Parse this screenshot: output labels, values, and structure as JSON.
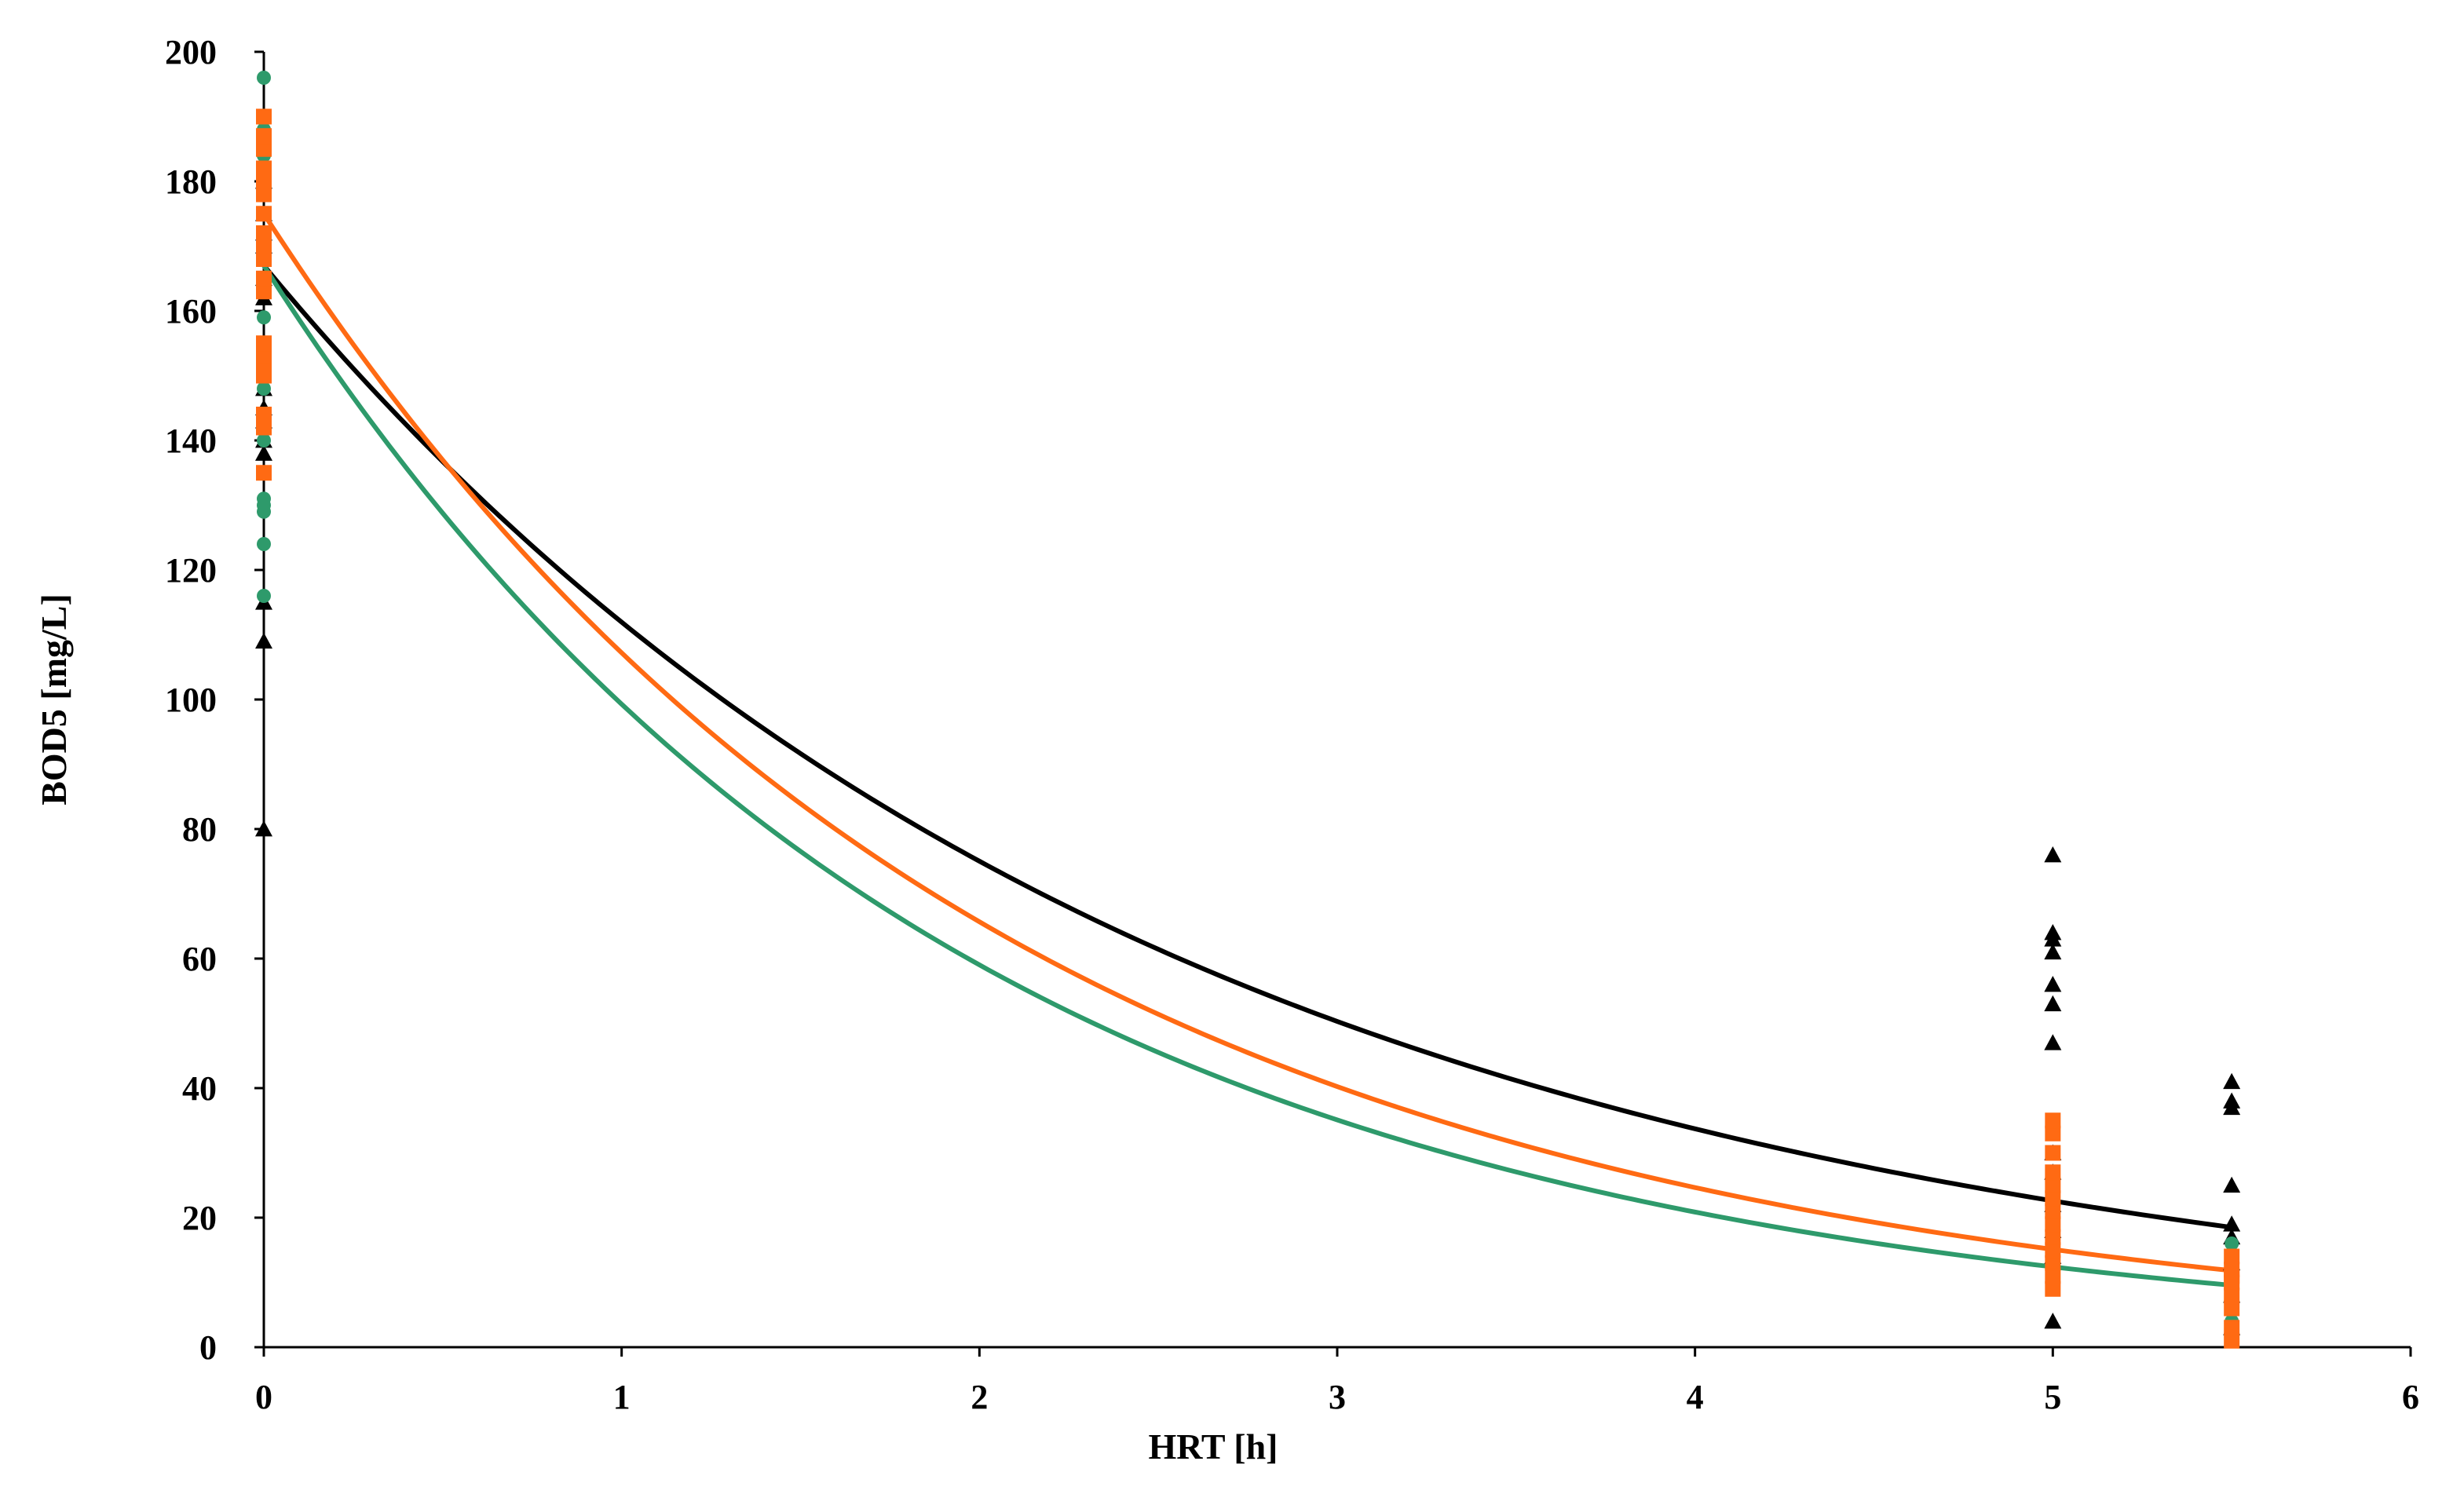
{
  "chart_data": {
    "type": "scatter",
    "title": "",
    "xlabel": "HRT [h]",
    "ylabel": "BOD5 [mg/L]",
    "xlim": [
      0,
      6
    ],
    "ylim": [
      0,
      200
    ],
    "xticks": [
      0,
      1,
      2,
      3,
      4,
      5,
      6
    ],
    "yticks": [
      0,
      20,
      40,
      60,
      80,
      100,
      120,
      140,
      160,
      180,
      200
    ],
    "grid": false,
    "legend": "none",
    "series": [
      {
        "marker": "triangle",
        "color": "#000000",
        "points": [
          [
            0,
            80
          ],
          [
            0,
            109
          ],
          [
            0,
            115
          ],
          [
            0,
            138
          ],
          [
            0,
            140
          ],
          [
            0,
            143
          ],
          [
            0,
            145
          ],
          [
            0,
            148
          ],
          [
            0,
            162
          ],
          [
            0,
            165
          ],
          [
            0,
            170
          ],
          [
            0,
            172
          ],
          [
            0,
            175
          ],
          [
            0,
            180
          ],
          [
            5,
            4
          ],
          [
            5,
            14
          ],
          [
            5,
            18
          ],
          [
            5,
            22
          ],
          [
            5,
            27
          ],
          [
            5,
            30
          ],
          [
            5,
            47
          ],
          [
            5,
            53
          ],
          [
            5,
            56
          ],
          [
            5,
            61
          ],
          [
            5,
            63
          ],
          [
            5,
            64
          ],
          [
            5,
            76
          ],
          [
            5.5,
            3
          ],
          [
            5.5,
            8
          ],
          [
            5.5,
            13
          ],
          [
            5.5,
            17
          ],
          [
            5.5,
            19
          ],
          [
            5.5,
            25
          ],
          [
            5.5,
            37
          ],
          [
            5.5,
            38
          ],
          [
            5.5,
            41
          ]
        ],
        "fit": {
          "a": 167,
          "k": 0.4
        }
      },
      {
        "marker": "square",
        "color": "#ff6a13",
        "points": [
          [
            0,
            135
          ],
          [
            0,
            142
          ],
          [
            0,
            144
          ],
          [
            0,
            150
          ],
          [
            0,
            152
          ],
          [
            0,
            153
          ],
          [
            0,
            155
          ],
          [
            0,
            163
          ],
          [
            0,
            165
          ],
          [
            0,
            168
          ],
          [
            0,
            170
          ],
          [
            0,
            172
          ],
          [
            0,
            175
          ],
          [
            0,
            178
          ],
          [
            0,
            180
          ],
          [
            0,
            182
          ],
          [
            0,
            185
          ],
          [
            0,
            187
          ],
          [
            0,
            190
          ],
          [
            5,
            9
          ],
          [
            5,
            11
          ],
          [
            5,
            13
          ],
          [
            5,
            15
          ],
          [
            5,
            17
          ],
          [
            5,
            19
          ],
          [
            5,
            21
          ],
          [
            5,
            23
          ],
          [
            5,
            25
          ],
          [
            5,
            27
          ],
          [
            5,
            30
          ],
          [
            5,
            33
          ],
          [
            5,
            35
          ],
          [
            5.5,
            1
          ],
          [
            5.5,
            3
          ],
          [
            5.5,
            6
          ],
          [
            5.5,
            8
          ],
          [
            5.5,
            10
          ],
          [
            5.5,
            11
          ],
          [
            5.5,
            12
          ],
          [
            5.5,
            14
          ]
        ],
        "fit": {
          "a": 175,
          "k": 0.49
        }
      },
      {
        "marker": "circle",
        "color": "#2e9a6b",
        "points": [
          [
            0,
            116
          ],
          [
            0,
            124
          ],
          [
            0,
            129
          ],
          [
            0,
            130
          ],
          [
            0,
            131
          ],
          [
            0,
            140
          ],
          [
            0,
            148
          ],
          [
            0,
            159
          ],
          [
            0,
            165
          ],
          [
            0,
            168
          ],
          [
            0,
            178
          ],
          [
            0,
            182
          ],
          [
            0,
            184
          ],
          [
            0,
            186
          ],
          [
            0,
            188
          ],
          [
            0,
            196
          ],
          [
            5,
            10
          ],
          [
            5,
            12
          ],
          [
            5,
            14
          ],
          [
            5,
            18
          ],
          [
            5,
            22
          ],
          [
            5,
            26
          ],
          [
            5,
            27
          ],
          [
            5.5,
            2
          ],
          [
            5.5,
            4
          ],
          [
            5.5,
            6
          ],
          [
            5.5,
            9
          ],
          [
            5.5,
            12
          ],
          [
            5.5,
            16
          ]
        ],
        "fit": {
          "a": 167,
          "k": 0.52
        }
      }
    ]
  }
}
